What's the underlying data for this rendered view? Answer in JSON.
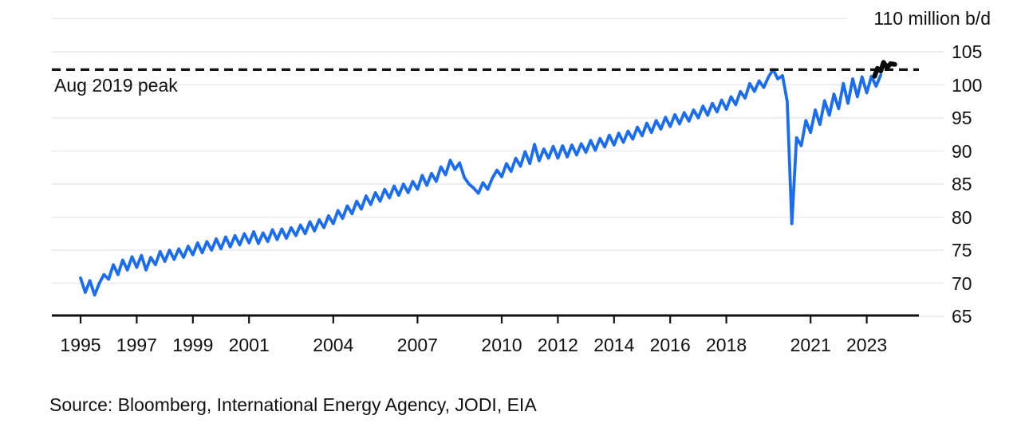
{
  "chart_data": {
    "type": "line",
    "unit_top_label": "110 million b/d",
    "x_axis": {
      "tick_years": [
        1995,
        1997,
        1999,
        2001,
        2004,
        2007,
        2010,
        2012,
        2014,
        2016,
        2018,
        2021,
        2023
      ],
      "range": [
        1994.0,
        2024.9
      ]
    },
    "y_axis": {
      "min": 65,
      "max": 110,
      "tick_step": 5,
      "tick_labels": [
        105,
        100,
        95,
        90,
        85,
        80,
        75,
        70,
        65
      ],
      "grid": true
    },
    "reference_line": {
      "label": "Aug 2019 peak",
      "value": 102.3,
      "style": "dashed",
      "color": "#141414"
    },
    "colors": {
      "history_line": "#1a6cf0",
      "forecast_line": "#0a0a0a",
      "grid": "#e9e9e9",
      "axis": "#111111"
    },
    "series": [
      {
        "name": "global-oil-demand-history",
        "color": "#1a6cf0",
        "x_start": 1995.0,
        "x_step": 0.1666667,
        "values": [
          70.8,
          68.6,
          70.4,
          68.2,
          70.0,
          71.3,
          70.6,
          72.8,
          71.3,
          73.5,
          72.0,
          74.0,
          72.4,
          74.2,
          72.0,
          73.9,
          72.8,
          74.8,
          73.3,
          75.0,
          73.6,
          75.2,
          73.9,
          75.6,
          74.3,
          76.1,
          74.6,
          76.3,
          75.0,
          76.7,
          75.2,
          77.0,
          75.5,
          77.2,
          75.8,
          77.5,
          76.1,
          77.8,
          76.0,
          77.6,
          76.3,
          78.1,
          76.6,
          78.2,
          76.8,
          78.4,
          77.2,
          78.8,
          77.5,
          79.3,
          77.9,
          79.6,
          78.4,
          80.2,
          79.0,
          81.0,
          79.8,
          81.7,
          80.5,
          82.4,
          81.2,
          83.2,
          81.9,
          83.7,
          82.4,
          84.2,
          82.9,
          84.7,
          83.3,
          85.0,
          83.7,
          85.4,
          84.2,
          86.3,
          84.8,
          86.6,
          85.4,
          87.6,
          86.4,
          88.6,
          87.2,
          88.2,
          86.0,
          85.0,
          84.4,
          83.6,
          85.2,
          84.2,
          85.9,
          87.1,
          86.1,
          88.1,
          86.9,
          88.9,
          87.7,
          89.9,
          88.1,
          91.0,
          88.5,
          90.3,
          88.9,
          90.7,
          88.9,
          90.8,
          89.1,
          90.9,
          89.4,
          91.1,
          89.8,
          91.6,
          90.1,
          91.9,
          90.6,
          92.4,
          90.9,
          92.7,
          91.3,
          93.0,
          91.8,
          93.6,
          92.3,
          94.2,
          92.8,
          94.6,
          93.3,
          95.1,
          93.7,
          95.5,
          94.1,
          95.8,
          94.5,
          96.2,
          95.0,
          96.8,
          95.4,
          97.2,
          95.9,
          97.7,
          96.3,
          98.2,
          97.0,
          99.0,
          98.0,
          100.2,
          99.0,
          100.6,
          99.6,
          101.2,
          102.3,
          100.9,
          101.4,
          97.5,
          79.0,
          92.0,
          90.8,
          94.6,
          92.8,
          96.2,
          94.0,
          97.6,
          95.4,
          98.6,
          96.4,
          100.2,
          97.2,
          100.9,
          98.2,
          101.2,
          98.8,
          101.3,
          99.8,
          101.5
        ]
      },
      {
        "name": "forecast",
        "color": "#0a0a0a",
        "points": [
          [
            2023.28,
            101.3
          ],
          [
            2023.38,
            102.5
          ],
          [
            2023.5,
            102.1
          ],
          [
            2023.6,
            103.4
          ],
          [
            2023.72,
            102.6
          ],
          [
            2023.85,
            103.2
          ],
          [
            2024.0,
            103.1
          ]
        ]
      }
    ]
  },
  "footer": {
    "source": "Source: Bloomberg, International Energy Agency, JODI, EIA"
  }
}
